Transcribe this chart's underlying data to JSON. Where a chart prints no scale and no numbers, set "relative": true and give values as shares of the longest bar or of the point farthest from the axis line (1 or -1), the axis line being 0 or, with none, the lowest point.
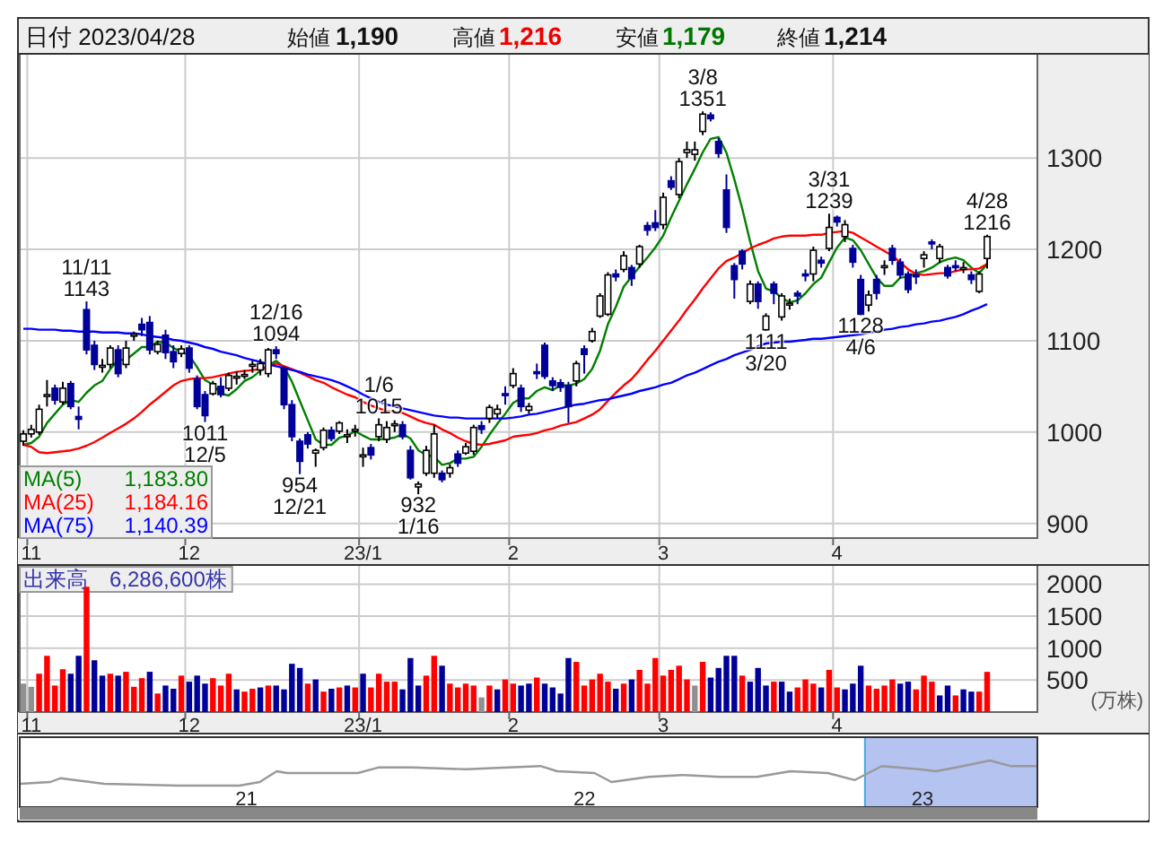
{
  "chart_data": [
    {
      "type": "candlestick",
      "categories": [
        null,
        "11",
        null,
        null,
        null,
        null,
        null,
        null,
        null,
        null,
        null,
        null,
        null,
        null,
        null,
        null,
        null,
        null,
        null,
        null,
        null,
        "12",
        null,
        null,
        null,
        null,
        null,
        null,
        null,
        null,
        null,
        null,
        null,
        null,
        null,
        null,
        null,
        null,
        null,
        null,
        null,
        null,
        null,
        "23/1",
        null,
        null,
        null,
        null,
        null,
        null,
        null,
        null,
        null,
        null,
        null,
        null,
        null,
        null,
        null,
        null,
        null,
        null,
        "2",
        null,
        null,
        null,
        null,
        null,
        null,
        null,
        null,
        null,
        null,
        null,
        null,
        null,
        null,
        null,
        null,
        null,
        null,
        "3",
        null,
        null,
        null,
        null,
        null,
        null,
        null,
        null,
        null,
        null,
        null,
        null,
        null,
        null,
        null,
        null,
        null,
        null,
        null,
        null,
        null,
        "4",
        null,
        null,
        null,
        null,
        null,
        null,
        null,
        null,
        null,
        null,
        null,
        null,
        null,
        null,
        null,
        null,
        null,
        null,
        null
      ],
      "ohlc": [
        [
          990,
          1002,
          985,
          998
        ],
        [
          998,
          1008,
          994,
          1003
        ],
        [
          1000,
          1030,
          997,
          1025
        ],
        [
          1040,
          1057,
          1028,
          1041
        ],
        [
          1048,
          1052,
          1030,
          1035
        ],
        [
          1033,
          1055,
          1030,
          1048
        ],
        [
          1053,
          1056,
          1025,
          1028
        ],
        [
          1017,
          1028,
          1003,
          1014
        ],
        [
          1134,
          1143,
          1085,
          1090
        ],
        [
          1095,
          1100,
          1068,
          1074
        ],
        [
          1071,
          1080,
          1065,
          1073
        ],
        [
          1074,
          1095,
          1070,
          1092
        ],
        [
          1090,
          1095,
          1060,
          1064
        ],
        [
          1074,
          1100,
          1070,
          1092
        ],
        [
          1105,
          1110,
          1100,
          1107
        ],
        [
          1118,
          1125,
          1105,
          1112
        ],
        [
          1120,
          1127,
          1085,
          1090
        ],
        [
          1088,
          1100,
          1085,
          1096
        ],
        [
          1106,
          1112,
          1080,
          1087
        ],
        [
          1088,
          1095,
          1070,
          1077
        ],
        [
          1086,
          1095,
          1082,
          1091
        ],
        [
          1092,
          1095,
          1065,
          1070
        ],
        [
          1058,
          1062,
          1025,
          1028
        ],
        [
          1041,
          1045,
          1011,
          1018
        ],
        [
          1042,
          1056,
          1040,
          1053
        ],
        [
          1050,
          1060,
          1038,
          1041
        ],
        [
          1048,
          1065,
          1045,
          1062
        ],
        [
          1060,
          1066,
          1052,
          1061
        ],
        [
          1062,
          1068,
          1058,
          1063
        ],
        [
          1072,
          1078,
          1065,
          1074
        ],
        [
          1068,
          1080,
          1062,
          1075
        ],
        [
          1064,
          1092,
          1060,
          1090
        ],
        [
          1090,
          1094,
          1080,
          1086
        ],
        [
          1070,
          1072,
          1025,
          1030
        ],
        [
          1030,
          1035,
          990,
          995
        ],
        [
          990,
          993,
          954,
          968
        ],
        [
          997,
          1000,
          982,
          987
        ],
        [
          977,
          982,
          962,
          980
        ],
        [
          983,
          1005,
          980,
          1002
        ],
        [
          1002,
          1006,
          990,
          993
        ],
        [
          1001,
          1012,
          998,
          1010
        ],
        [
          996,
          1003,
          988,
          997
        ],
        [
          1001,
          1008,
          995,
          1003
        ],
        [
          973,
          983,
          962,
          975
        ],
        [
          983,
          987,
          970,
          975
        ],
        [
          995,
          1015,
          990,
          1008
        ],
        [
          992,
          1012,
          988,
          1005
        ],
        [
          1008,
          1013,
          1000,
          1009
        ],
        [
          1008,
          1012,
          992,
          995
        ],
        [
          980,
          985,
          948,
          950
        ],
        [
          940,
          946,
          932,
          943
        ],
        [
          955,
          985,
          952,
          980
        ],
        [
          955,
          1008,
          950,
          998
        ],
        [
          955,
          958,
          945,
          948
        ],
        [
          955,
          965,
          950,
          961
        ],
        [
          976,
          980,
          962,
          966
        ],
        [
          977,
          988,
          975,
          984
        ],
        [
          979,
          1008,
          975,
          1005
        ],
        [
          1007,
          1012,
          998,
          1003
        ],
        [
          1015,
          1030,
          1010,
          1027
        ],
        [
          1020,
          1030,
          1015,
          1025
        ],
        [
          1042,
          1050,
          1030,
          1040
        ],
        [
          1051,
          1070,
          1048,
          1064
        ],
        [
          1048,
          1052,
          1022,
          1028
        ],
        [
          1024,
          1032,
          1020,
          1028
        ],
        [
          1066,
          1075,
          1058,
          1064
        ],
        [
          1095,
          1098,
          1058,
          1061
        ],
        [
          1056,
          1060,
          1045,
          1051
        ],
        [
          1054,
          1058,
          1044,
          1049
        ],
        [
          1051,
          1055,
          1010,
          1028
        ],
        [
          1056,
          1078,
          1050,
          1075
        ],
        [
          1091,
          1095,
          1064,
          1085
        ],
        [
          1100,
          1114,
          1098,
          1110
        ],
        [
          1127,
          1152,
          1125,
          1149
        ],
        [
          1129,
          1175,
          1127,
          1172
        ],
        [
          1173,
          1178,
          1165,
          1170
        ],
        [
          1178,
          1198,
          1175,
          1193
        ],
        [
          1180,
          1183,
          1160,
          1168
        ],
        [
          1184,
          1205,
          1180,
          1203
        ],
        [
          1226,
          1230,
          1215,
          1221
        ],
        [
          1229,
          1243,
          1220,
          1224
        ],
        [
          1227,
          1262,
          1222,
          1257
        ],
        [
          1275,
          1280,
          1265,
          1268
        ],
        [
          1260,
          1300,
          1256,
          1296
        ],
        [
          1306,
          1318,
          1300,
          1309
        ],
        [
          1304,
          1318,
          1297,
          1309
        ],
        [
          1329,
          1351,
          1325,
          1348
        ],
        [
          1347,
          1350,
          1340,
          1343
        ],
        [
          1318,
          1322,
          1300,
          1305
        ],
        [
          1265,
          1282,
          1218,
          1224
        ],
        [
          1182,
          1185,
          1146,
          1167
        ],
        [
          1198,
          1200,
          1178,
          1184
        ],
        [
          1143,
          1166,
          1140,
          1162
        ],
        [
          1162,
          1165,
          1135,
          1143
        ],
        [
          1112,
          1130,
          1111,
          1127
        ],
        [
          1162,
          1165,
          1140,
          1152
        ],
        [
          1126,
          1152,
          1122,
          1149
        ],
        [
          1140,
          1146,
          1134,
          1141
        ],
        [
          1152,
          1155,
          1140,
          1149
        ],
        [
          1173,
          1178,
          1165,
          1171
        ],
        [
          1173,
          1203,
          1165,
          1199
        ],
        [
          1188,
          1192,
          1180,
          1185
        ],
        [
          1201,
          1239,
          1198,
          1224
        ],
        [
          1235,
          1237,
          1225,
          1230
        ],
        [
          1214,
          1232,
          1208,
          1227
        ],
        [
          1201,
          1205,
          1180,
          1186
        ],
        [
          1167,
          1172,
          1128,
          1129
        ],
        [
          1139,
          1155,
          1132,
          1150
        ],
        [
          1167,
          1172,
          1145,
          1152
        ],
        [
          1181,
          1188,
          1172,
          1182
        ],
        [
          1201,
          1205,
          1183,
          1188
        ],
        [
          1186,
          1190,
          1168,
          1172
        ],
        [
          1173,
          1176,
          1152,
          1156
        ],
        [
          1172,
          1178,
          1162,
          1170
        ],
        [
          1190,
          1198,
          1180,
          1194
        ],
        [
          1208,
          1211,
          1200,
          1206
        ],
        [
          1190,
          1206,
          1185,
          1203
        ],
        [
          1180,
          1183,
          1168,
          1171
        ],
        [
          1182,
          1188,
          1176,
          1181
        ],
        [
          1180,
          1186,
          1174,
          1180
        ],
        [
          1172,
          1176,
          1162,
          1167
        ],
        [
          1154,
          1176,
          1152,
          1173
        ],
        [
          1190,
          1216,
          1179,
          1214
        ]
      ],
      "colors": [
        "#ffffff",
        "#ffffff",
        "#ffffff",
        "#ffffff",
        "#000099",
        "#ffffff",
        "#000099",
        "#000099",
        "#000099",
        "#000099",
        "#ffffff",
        "#ffffff",
        "#000099",
        "#ffffff",
        "#ffffff",
        "#000099",
        "#000099",
        "#ffffff",
        "#000099",
        "#000099",
        "#ffffff",
        "#000099",
        "#000099",
        "#000099",
        "#ffffff",
        "#000099",
        "#ffffff",
        "#ffffff",
        "#ffffff",
        "#ffffff",
        "#ffffff",
        "#ffffff",
        "#000099",
        "#000099",
        "#000099",
        "#000099",
        "#000099",
        "#ffffff",
        "#ffffff",
        "#000099",
        "#ffffff",
        "#ffffff",
        "#ffffff",
        "#ffffff",
        "#000099",
        "#ffffff",
        "#ffffff",
        "#ffffff",
        "#000099",
        "#000099",
        "#ffffff",
        "#ffffff",
        "#ffffff",
        "#000099",
        "#ffffff",
        "#000099",
        "#ffffff",
        "#ffffff",
        "#000099",
        "#ffffff",
        "#ffffff",
        "#000099",
        "#ffffff",
        "#000099",
        "#ffffff",
        "#000099",
        "#000099",
        "#000099",
        "#000099",
        "#000099",
        "#ffffff",
        "#000099",
        "#ffffff",
        "#ffffff",
        "#ffffff",
        "#000099",
        "#ffffff",
        "#000099",
        "#ffffff",
        "#000099",
        "#000099",
        "#ffffff",
        "#000099",
        "#ffffff",
        "#ffffff",
        "#ffffff",
        "#ffffff",
        "#000099",
        "#000099",
        "#000099",
        "#000099",
        "#000099",
        "#ffffff",
        "#000099",
        "#ffffff",
        "#000099",
        "#ffffff",
        "#ffffff",
        "#000099",
        "#000099",
        "#ffffff",
        "#000099",
        "#ffffff",
        "#000099",
        "#ffffff",
        "#000099",
        "#000099",
        "#ffffff",
        "#000099",
        "#ffffff",
        "#000099",
        "#000099",
        "#000099",
        "#000099",
        "#ffffff",
        "#000099",
        "#ffffff",
        "#000099",
        "#000099",
        "#ffffff",
        "#000099",
        "#ffffff",
        "#ffffff"
      ],
      "ylim": [
        884,
        1414
      ],
      "yticks": [
        900,
        1000,
        1100,
        1200,
        1300
      ],
      "grid": true,
      "legend": "bottom left",
      "series": [
        {
          "type": "line",
          "name": "MA(5)",
          "color": "#008000",
          "values": [
            986,
            988,
            995,
            1010,
            1020,
            1030,
            1035,
            1033,
            1043,
            1051,
            1056,
            1069,
            1079,
            1079,
            1086,
            1093,
            1093,
            1099,
            1098,
            1092,
            1088,
            1084,
            1071,
            1057,
            1052,
            1042,
            1040,
            1047,
            1056,
            1060,
            1067,
            1073,
            1078,
            1071,
            1055,
            1034,
            1013,
            992,
            986,
            986,
            994,
            996,
            1001,
            996,
            992,
            992,
            993,
            994,
            998,
            993,
            980,
            975,
            973,
            964,
            966,
            971,
            971,
            973,
            984,
            997,
            1009,
            1020,
            1032,
            1037,
            1037,
            1045,
            1049,
            1046,
            1051,
            1051,
            1053,
            1058,
            1069,
            1089,
            1118,
            1137,
            1159,
            1170,
            1181,
            1191,
            1202,
            1215,
            1235,
            1253,
            1271,
            1288,
            1306,
            1321,
            1323,
            1306,
            1277,
            1245,
            1208,
            1176,
            1157,
            1154,
            1147,
            1142,
            1144,
            1152,
            1162,
            1169,
            1186,
            1202,
            1213,
            1210,
            1199,
            1184,
            1169,
            1160,
            1160,
            1169,
            1170,
            1174,
            1176,
            1180,
            1186,
            1189,
            1191,
            1188,
            1180,
            1174,
            1184
          ]
        },
        {
          "type": "line",
          "name": "MA(25)",
          "color": "#ff0000",
          "values": [
            986,
            984,
            978,
            977,
            978,
            979,
            980,
            982,
            985,
            989,
            994,
            999,
            1004,
            1009,
            1015,
            1022,
            1030,
            1037,
            1044,
            1051,
            1056,
            1058,
            1059,
            1059,
            1060,
            1062,
            1064,
            1066,
            1067,
            1068,
            1069,
            1072,
            1075,
            1072,
            1069,
            1065,
            1061,
            1057,
            1054,
            1049,
            1045,
            1041,
            1038,
            1033,
            1029,
            1026,
            1023,
            1022,
            1021,
            1017,
            1013,
            1010,
            1008,
            1003,
            999,
            994,
            990,
            987,
            986,
            987,
            989,
            991,
            995,
            996,
            997,
            999,
            1002,
            1004,
            1007,
            1009,
            1011,
            1015,
            1019,
            1025,
            1034,
            1043,
            1051,
            1058,
            1068,
            1079,
            1089,
            1100,
            1111,
            1122,
            1134,
            1145,
            1157,
            1168,
            1179,
            1187,
            1191,
            1196,
            1201,
            1205,
            1208,
            1212,
            1214,
            1215,
            1215,
            1215,
            1216,
            1216,
            1218,
            1219,
            1220,
            1218,
            1213,
            1208,
            1203,
            1198,
            1193,
            1186,
            1178,
            1173,
            1172,
            1173,
            1174,
            1174,
            1176,
            1178,
            1178,
            1179,
            1184
          ]
        },
        {
          "type": "line",
          "name": "MA(75)",
          "color": "#0000ff",
          "values": [
            1113,
            1113,
            1112,
            1112,
            1112,
            1111,
            1111,
            1110,
            1110,
            1110,
            1109,
            1109,
            1109,
            1108,
            1108,
            1107,
            1105,
            1104,
            1103,
            1101,
            1100,
            1098,
            1096,
            1093,
            1091,
            1088,
            1086,
            1084,
            1081,
            1079,
            1077,
            1074,
            1072,
            1070,
            1068,
            1066,
            1063,
            1061,
            1059,
            1057,
            1054,
            1050,
            1046,
            1041,
            1037,
            1033,
            1030,
            1028,
            1026,
            1024,
            1022,
            1020,
            1018,
            1017,
            1016,
            1016,
            1015,
            1015,
            1015,
            1015,
            1015,
            1015,
            1016,
            1017,
            1019,
            1020,
            1022,
            1024,
            1026,
            1028,
            1030,
            1031,
            1033,
            1035,
            1036,
            1038,
            1040,
            1042,
            1045,
            1047,
            1049,
            1052,
            1054,
            1058,
            1062,
            1065,
            1069,
            1073,
            1077,
            1080,
            1084,
            1087,
            1090,
            1094,
            1097,
            1098,
            1099,
            1099,
            1100,
            1101,
            1102,
            1102,
            1103,
            1104,
            1105,
            1106,
            1107,
            1109,
            1110,
            1112,
            1113,
            1115,
            1116,
            1118,
            1119,
            1121,
            1122,
            1124,
            1126,
            1129,
            1133,
            1136,
            1140
          ]
        }
      ],
      "annotations": [
        "日付 2023/04/28",
        "始値",
        "1,190",
        "高値",
        "1,216",
        "安値",
        "1,179",
        "終値",
        "1,214",
        "1,183.80",
        "1,184.16",
        "1,140.39",
        {
          "text": "11/11\n1143",
          "y": 1143
        },
        {
          "text": "1011\n12/5",
          "y": 1011
        },
        {
          "text": "12/16\n1094",
          "y": 1094
        },
        {
          "text": "954\n12/21",
          "y": 954
        },
        {
          "text": "1/6\n1015",
          "y": 1015
        },
        {
          "text": "932\n1/16",
          "y": 932
        },
        {
          "text": "3/8\n1351",
          "y": 1351
        },
        {
          "text": "1111\n3/20",
          "y": 1111
        },
        {
          "text": "3/31\n1239",
          "y": 1239
        },
        {
          "text": "1128\n4/6",
          "y": 1128
        },
        {
          "text": "4/28\n1216",
          "y": 1216
        }
      ]
    },
    {
      "type": "bar",
      "title": "出来高　6,286,600株",
      "ylabel": "(万株)",
      "categories": [
        null,
        "11",
        null,
        null,
        null,
        null,
        null,
        null,
        null,
        null,
        null,
        null,
        null,
        null,
        null,
        null,
        null,
        null,
        null,
        null,
        null,
        "12",
        null,
        null,
        null,
        null,
        null,
        null,
        null,
        null,
        null,
        null,
        null,
        null,
        null,
        null,
        null,
        null,
        null,
        null,
        null,
        null,
        null,
        "23/1",
        null,
        null,
        null,
        null,
        null,
        null,
        null,
        null,
        null,
        null,
        null,
        null,
        null,
        null,
        null,
        null,
        null,
        null,
        "2",
        null,
        null,
        null,
        null,
        null,
        null,
        null,
        null,
        null,
        null,
        null,
        null,
        null,
        null,
        null,
        null,
        null,
        null,
        "3",
        null,
        null,
        null,
        null,
        null,
        null,
        null,
        null,
        null,
        null,
        null,
        null,
        null,
        null,
        null,
        null,
        null,
        null,
        null,
        null,
        null,
        "4",
        null,
        null,
        null,
        null,
        null,
        null,
        null,
        null,
        null,
        null,
        null,
        null,
        null,
        null,
        null,
        null,
        null,
        null,
        null
      ],
      "values": [
        445,
        395,
        600,
        880,
        415,
        670,
        600,
        880,
        1960,
        810,
        570,
        600,
        570,
        630,
        395,
        530,
        630,
        290,
        415,
        365,
        570,
        475,
        570,
        445,
        530,
        415,
        600,
        355,
        320,
        365,
        385,
        415,
        415,
        355,
        755,
        690,
        445,
        510,
        320,
        365,
        385,
        415,
        385,
        600,
        385,
        600,
        475,
        475,
        355,
        845,
        415,
        570,
        880,
        725,
        445,
        385,
        445,
        415,
        230,
        415,
        355,
        510,
        445,
        415,
        445,
        540,
        445,
        385,
        290,
        845,
        785,
        415,
        510,
        600,
        475,
        365,
        445,
        510,
        660,
        445,
        845,
        570,
        660,
        725,
        510,
        415,
        785,
        540,
        690,
        880,
        880,
        570,
        475,
        690,
        415,
        475,
        475,
        320,
        385,
        510,
        445,
        385,
        660,
        385,
        355,
        445,
        725,
        415,
        365,
        415,
        510,
        445,
        475,
        355,
        570,
        475,
        260,
        415,
        260,
        355,
        320,
        320,
        629
      ],
      "colors": [
        "#909090",
        "#909090",
        "#ff0000",
        "#ff0000",
        "#ff0000",
        "#ff0000",
        "#000099",
        "#000099",
        "#ff0000",
        "#000099",
        "#000099",
        "#ff0000",
        "#000099",
        "#ff0000",
        "#ff0000",
        "#ff0000",
        "#000099",
        "#ff0000",
        "#000099",
        "#000099",
        "#ff0000",
        "#000099",
        "#000099",
        "#000099",
        "#ff0000",
        "#ff0000",
        "#ff0000",
        "#000099",
        "#ff0000",
        "#ff0000",
        "#000099",
        "#ff0000",
        "#000099",
        "#000099",
        "#000099",
        "#000099",
        "#ff0000",
        "#000099",
        "#ff0000",
        "#000099",
        "#ff0000",
        "#000099",
        "#ff0000",
        "#000099",
        "#ff0000",
        "#ff0000",
        "#ff0000",
        "#ff0000",
        "#000099",
        "#000099",
        "#000099",
        "#ff0000",
        "#ff0000",
        "#000099",
        "#ff0000",
        "#ff0000",
        "#ff0000",
        "#ff0000",
        "#909090",
        "#ff0000",
        "#000099",
        "#ff0000",
        "#ff0000",
        "#000099",
        "#000099",
        "#ff0000",
        "#000099",
        "#000099",
        "#000099",
        "#000099",
        "#ff0000",
        "#ff0000",
        "#ff0000",
        "#ff0000",
        "#ff0000",
        "#000099",
        "#ff0000",
        "#000099",
        "#ff0000",
        "#ff0000",
        "#ff0000",
        "#ff0000",
        "#ff0000",
        "#ff0000",
        "#ff0000",
        "#909090",
        "#ff0000",
        "#000099",
        "#000099",
        "#000099",
        "#000099",
        "#ff0000",
        "#000099",
        "#000099",
        "#000099",
        "#ff0000",
        "#000099",
        "#000099",
        "#ff0000",
        "#ff0000",
        "#ff0000",
        "#000099",
        "#ff0000",
        "#ff0000",
        "#000099",
        "#000099",
        "#000099",
        "#ff0000",
        "#ff0000",
        "#ff0000",
        "#ff0000",
        "#000099",
        "#000099",
        "#ff0000",
        "#ff0000",
        "#ff0000",
        "#000099",
        "#000099",
        "#ff0000",
        "#000099",
        "#000099",
        "#ff0000",
        "#ff0000"
      ],
      "ylim": [
        0,
        2300
      ],
      "yticks": [
        500,
        1000,
        1500,
        2000
      ],
      "grid": true
    },
    {
      "type": "line",
      "relative": true,
      "x": [
        2020.33,
        2020.42,
        2020.45,
        2020.58,
        2020.8,
        2020.98,
        2021.04,
        2021.09,
        2021.12,
        2021.33,
        2021.39,
        2021.49,
        2021.65,
        2021.87,
        2021.92,
        2022.03,
        2022.08,
        2022.19,
        2022.29,
        2022.4,
        2022.51,
        2022.61,
        2022.72,
        2022.8,
        2022.88,
        2022.99,
        2023.04,
        2023.1,
        2023.2,
        2023.26,
        2023.34
      ],
      "xlim": [
        2020.33,
        2023.34
      ],
      "xticks": [
        {
          "value": 2021,
          "label": "21"
        },
        {
          "value": 2022,
          "label": "22"
        },
        {
          "value": 2023,
          "label": "23"
        }
      ],
      "series": [
        {
          "color": "#999999",
          "values": [
            0.5,
            0.54,
            0.62,
            0.5,
            0.46,
            0.46,
            0.54,
            0.77,
            0.73,
            0.73,
            0.85,
            0.85,
            0.81,
            0.88,
            0.77,
            0.73,
            0.54,
            0.65,
            0.69,
            0.65,
            0.65,
            0.77,
            0.73,
            0.58,
            0.88,
            0.81,
            0.77,
            0.85,
            1,
            0.88,
            0.88
          ]
        }
      ],
      "bands": [
        {
          "axis": "x",
          "from": 2022.83,
          "to": 2023.34,
          "color": "#b4c3f0"
        }
      ]
    }
  ]
}
